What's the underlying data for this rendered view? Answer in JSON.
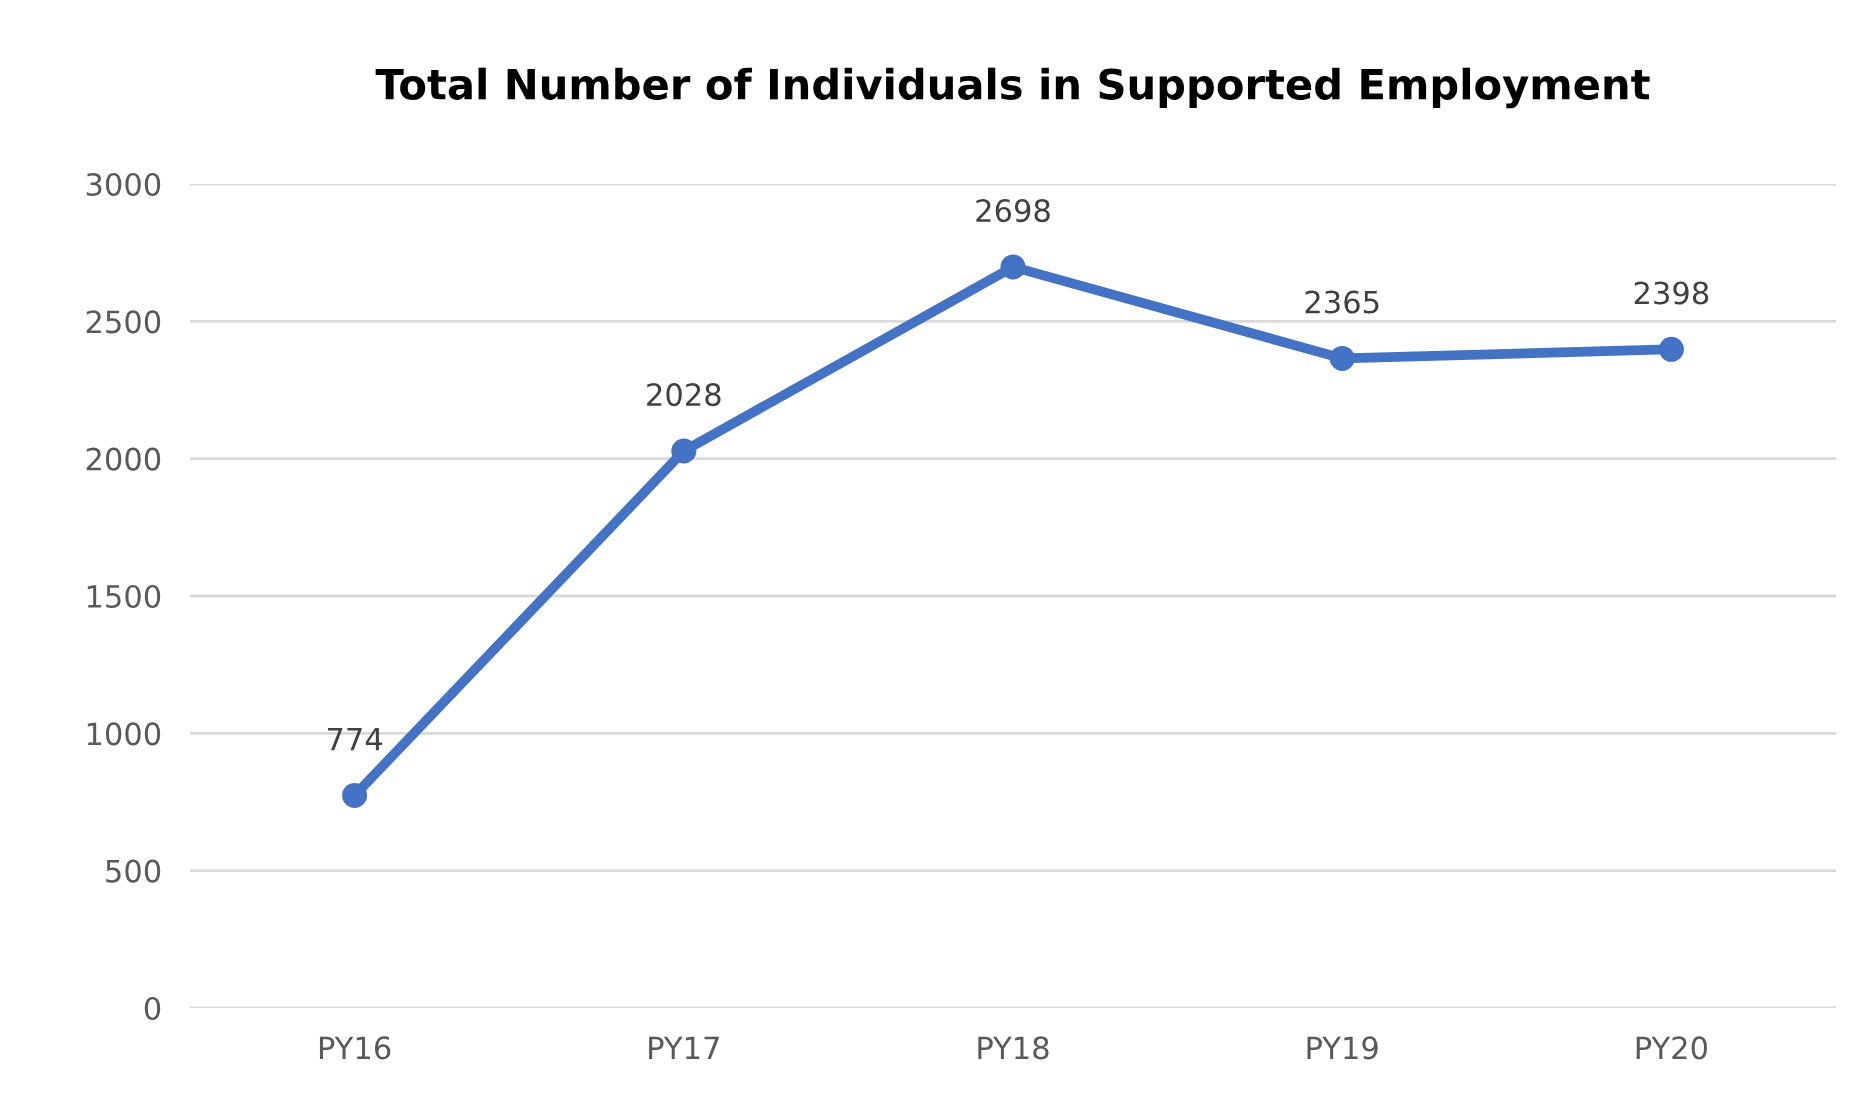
{
  "chart_data": {
    "type": "line",
    "title": "Total Number of Individuals in Supported Employment",
    "categories": [
      "PY16",
      "PY17",
      "PY18",
      "PY19",
      "PY20"
    ],
    "series": [
      {
        "color": "#4472c4",
        "values": [
          774,
          2028,
          2698,
          2365,
          2398
        ]
      }
    ],
    "ylim": [
      0,
      3000
    ],
    "yticks": [
      0,
      500,
      1000,
      1500,
      2000,
      2500,
      3000
    ],
    "grid": "y",
    "marker": "circle",
    "line_style": "solid",
    "data_labels": true
  }
}
